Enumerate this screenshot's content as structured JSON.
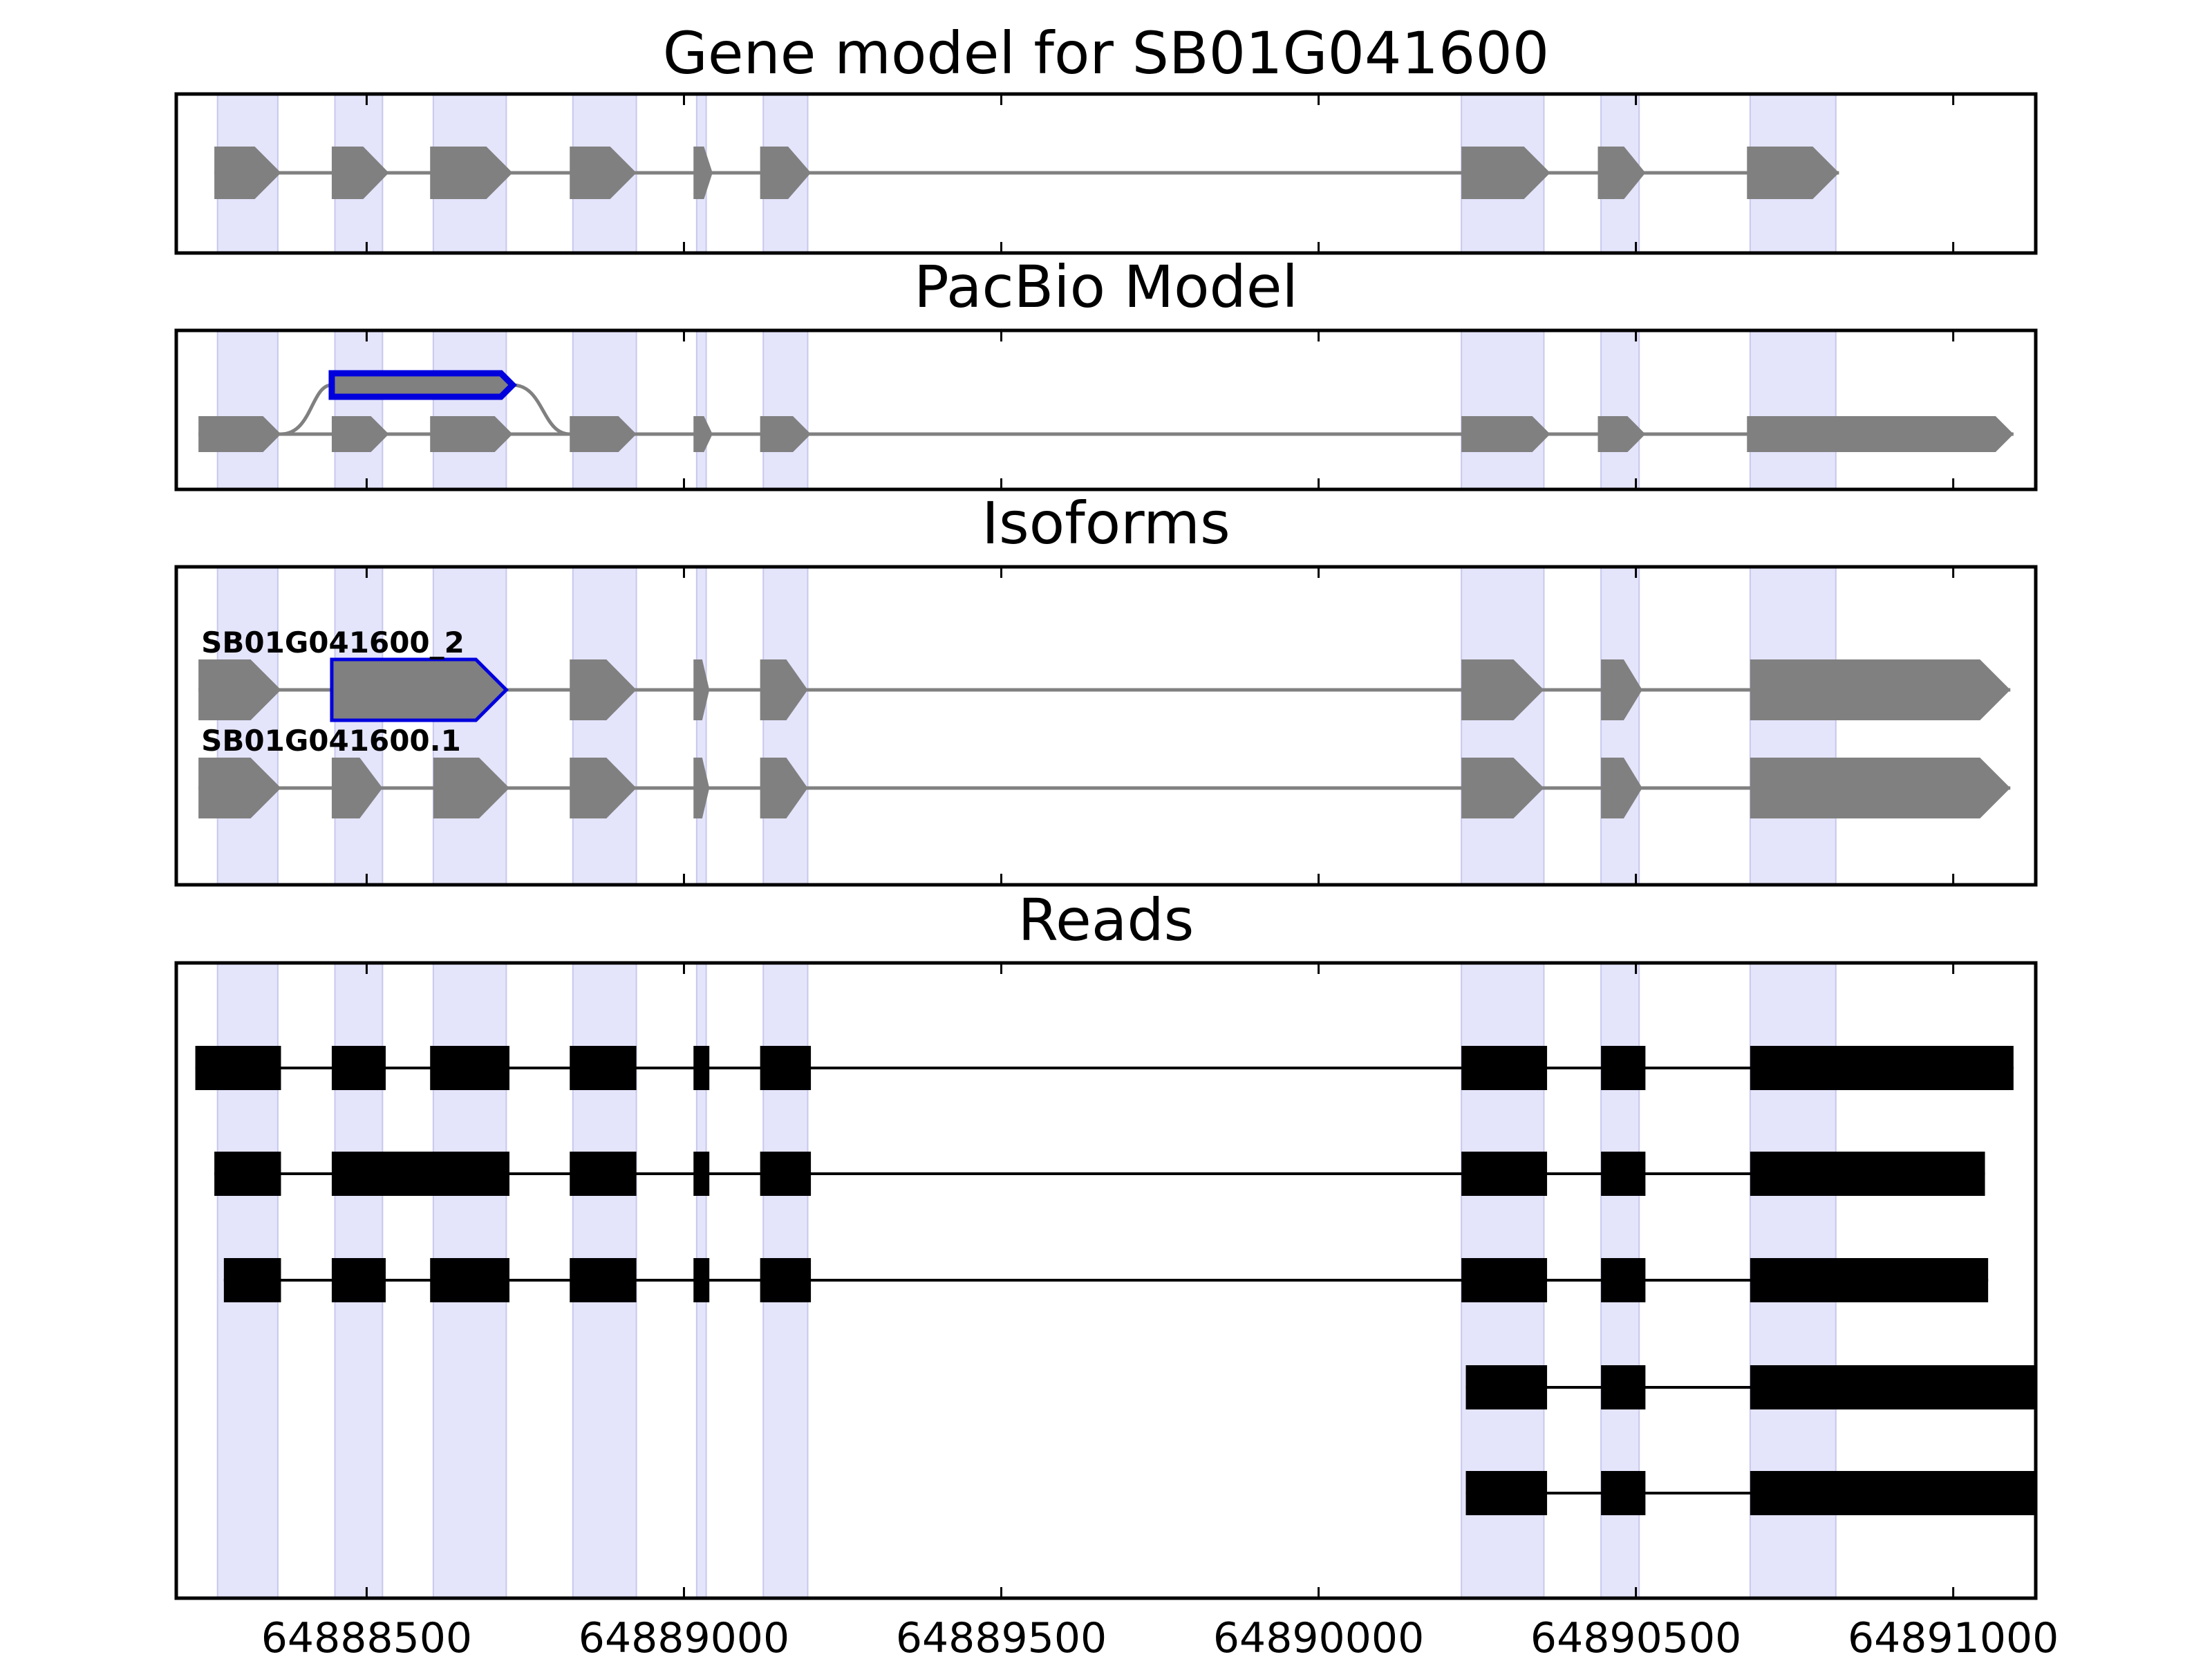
{
  "colors": {
    "exon_band": "#e4e4fb",
    "exon_band_edge": "#c8c8ee",
    "exon_fill": "#808080",
    "intron_line": "#808080",
    "highlight": "#0000dd",
    "read": "#000000",
    "frame": "#000000"
  },
  "chart_data": {
    "type": "gene-structure",
    "xlim": [
      64888200,
      64891130
    ],
    "xticks": [
      64888500,
      64889000,
      64889500,
      64890000,
      64890500,
      64891000
    ],
    "xtick_labels": [
      "64888500",
      "64889000",
      "64889500",
      "64890000",
      "64890500",
      "64891000"
    ],
    "exon_bands": [
      [
        64888265,
        64888360
      ],
      [
        64888450,
        64888525
      ],
      [
        64888605,
        64888720
      ],
      [
        64888825,
        64888925
      ],
      [
        64889020,
        64889035
      ],
      [
        64889125,
        64889195
      ],
      [
        64890225,
        64890355
      ],
      [
        64890445,
        64890505
      ],
      [
        64890680,
        64890815
      ]
    ],
    "panels": [
      {
        "title": "Gene model for SB01G041600",
        "rows": [
          {
            "style": "arrow",
            "exons": [
              [
                64888260,
                64888365
              ],
              [
                64888445,
                64888535
              ],
              [
                64888600,
                64888730
              ],
              [
                64888820,
                64888925
              ],
              [
                64889015,
                64889045
              ],
              [
                64889120,
                64889200
              ],
              [
                64890225,
                64890365
              ],
              [
                64890440,
                64890515
              ],
              [
                64890675,
                64890820
              ]
            ]
          }
        ]
      },
      {
        "title": "PacBio Model",
        "rows": [
          {
            "style": "arrow",
            "exons": [
              [
                64888235,
                64888365
              ],
              [
                64888445,
                64888535
              ],
              [
                64888600,
                64888730
              ],
              [
                64888820,
                64888925
              ],
              [
                64889015,
                64889045
              ],
              [
                64889120,
                64889200
              ],
              [
                64890225,
                64890365
              ],
              [
                64890440,
                64890515
              ],
              [
                64890675,
                64891095
              ]
            ],
            "alt_exon": {
              "span": [
                64888445,
                64888730
              ],
              "from_exon": 0,
              "to_exon": 3
            }
          }
        ]
      },
      {
        "title": "Isoforms",
        "rows": [
          {
            "label": "SB01G041600_2",
            "style": "arrow",
            "highlight": [
              1
            ],
            "exons": [
              [
                64888235,
                64888365
              ],
              [
                64888445,
                64888720
              ],
              [
                64888820,
                64888925
              ],
              [
                64889015,
                64889040
              ],
              [
                64889120,
                64889195
              ],
              [
                64890225,
                64890355
              ],
              [
                64890445,
                64890510
              ],
              [
                64890680,
                64891090
              ]
            ]
          },
          {
            "label": "SB01G041600.1",
            "style": "arrow",
            "exons": [
              [
                64888235,
                64888365
              ],
              [
                64888445,
                64888525
              ],
              [
                64888605,
                64888725
              ],
              [
                64888820,
                64888925
              ],
              [
                64889015,
                64889040
              ],
              [
                64889120,
                64889195
              ],
              [
                64890225,
                64890355
              ],
              [
                64890445,
                64890510
              ],
              [
                64890680,
                64891090
              ]
            ]
          }
        ]
      },
      {
        "title": "Reads",
        "rows": [
          {
            "style": "block",
            "exons": [
              [
                64888230,
                64888365
              ],
              [
                64888445,
                64888530
              ],
              [
                64888600,
                64888725
              ],
              [
                64888820,
                64888925
              ],
              [
                64889015,
                64889040
              ],
              [
                64889120,
                64889200
              ],
              [
                64890225,
                64890360
              ],
              [
                64890445,
                64890515
              ],
              [
                64890680,
                64891095
              ]
            ]
          },
          {
            "style": "block",
            "exons": [
              [
                64888260,
                64888365
              ],
              [
                64888445,
                64888725
              ],
              [
                64888820,
                64888925
              ],
              [
                64889015,
                64889040
              ],
              [
                64889120,
                64889200
              ],
              [
                64890225,
                64890360
              ],
              [
                64890445,
                64890515
              ],
              [
                64890680,
                64891050
              ]
            ]
          },
          {
            "style": "block",
            "exons": [
              [
                64888275,
                64888365
              ],
              [
                64888445,
                64888530
              ],
              [
                64888600,
                64888725
              ],
              [
                64888820,
                64888925
              ],
              [
                64889015,
                64889040
              ],
              [
                64889120,
                64889200
              ],
              [
                64890225,
                64890360
              ],
              [
                64890445,
                64890515
              ],
              [
                64890680,
                64891055
              ]
            ]
          },
          {
            "style": "block",
            "exons": [
              [
                64890232,
                64890360
              ],
              [
                64890445,
                64890515
              ],
              [
                64890680,
                64891130
              ]
            ]
          },
          {
            "style": "block",
            "exons": [
              [
                64890232,
                64890360
              ],
              [
                64890445,
                64890515
              ],
              [
                64890680,
                64891130
              ]
            ]
          }
        ]
      }
    ]
  }
}
